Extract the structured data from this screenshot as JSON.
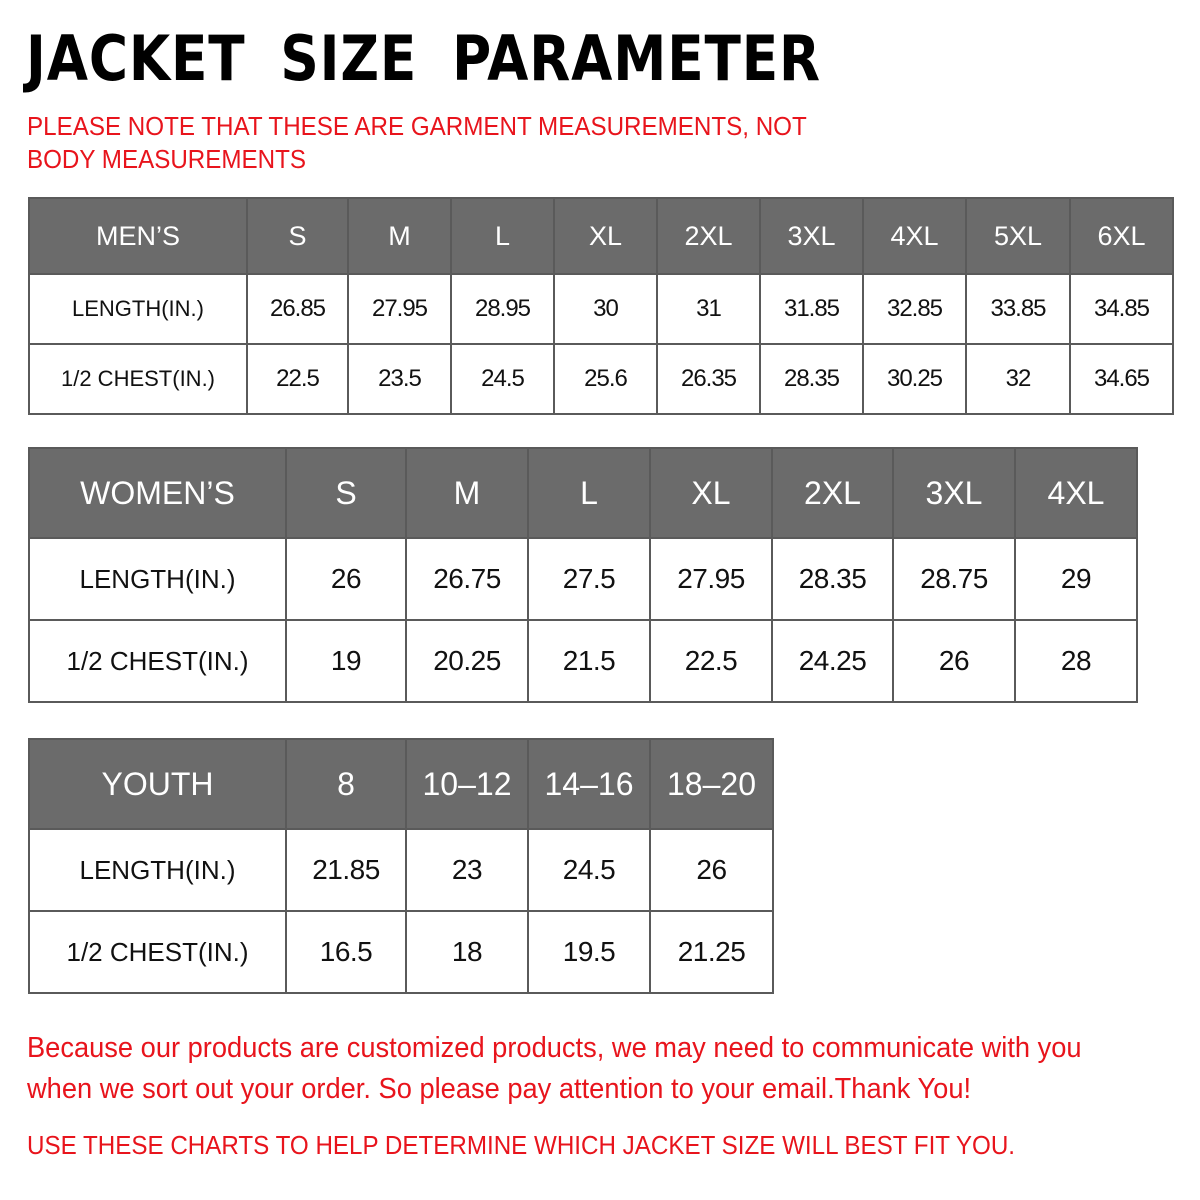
{
  "title": "JACKET SIZE PARAMETER",
  "note": "PLEASE NOTE THAT THESE ARE GARMENT MEASUREMENTS, NOT BODY MEASUREMENTS",
  "colors": {
    "header_bg": "#6b6b6b",
    "note_red": "#e8141c"
  },
  "mens": {
    "label": "MEN’S",
    "sizes": [
      "S",
      "M",
      "L",
      "XL",
      "2XL",
      "3XL",
      "4XL",
      "5XL",
      "6XL"
    ],
    "rows": [
      {
        "label": "LENGTH(IN.)",
        "values": [
          "26.85",
          "27.95",
          "28.95",
          "30",
          "31",
          "31.85",
          "32.85",
          "33.85",
          "34.85"
        ]
      },
      {
        "label": "1/2 CHEST(IN.)",
        "values": [
          "22.5",
          "23.5",
          "24.5",
          "25.6",
          "26.35",
          "28.35",
          "30.25",
          "32",
          "34.65"
        ]
      }
    ]
  },
  "womens": {
    "label": "WOMEN’S",
    "sizes": [
      "S",
      "M",
      "L",
      "XL",
      "2XL",
      "3XL",
      "4XL"
    ],
    "rows": [
      {
        "label": "LENGTH(IN.)",
        "values": [
          "26",
          "26.75",
          "27.5",
          "27.95",
          "28.35",
          "28.75",
          "29"
        ]
      },
      {
        "label": "1/2 CHEST(IN.)",
        "values": [
          "19",
          "20.25",
          "21.5",
          "22.5",
          "24.25",
          "26",
          "28"
        ]
      }
    ]
  },
  "youth": {
    "label": "YOUTH",
    "sizes": [
      "8",
      "10–12",
      "14–16",
      "18–20"
    ],
    "rows": [
      {
        "label": "LENGTH(IN.)",
        "values": [
          "21.85",
          "23",
          "24.5",
          "26"
        ]
      },
      {
        "label": "1/2 CHEST(IN.)",
        "values": [
          "16.5",
          "18",
          "19.5",
          "21.25"
        ]
      }
    ]
  },
  "footer": {
    "message": "Because our products are customized products, we may need to communicate with you when we sort out your order. So please pay attention to your email.Thank You!",
    "tip": "USE THESE CHARTS TO HELP DETERMINE WHICH JACKET SIZE WILL BEST FIT YOU."
  }
}
